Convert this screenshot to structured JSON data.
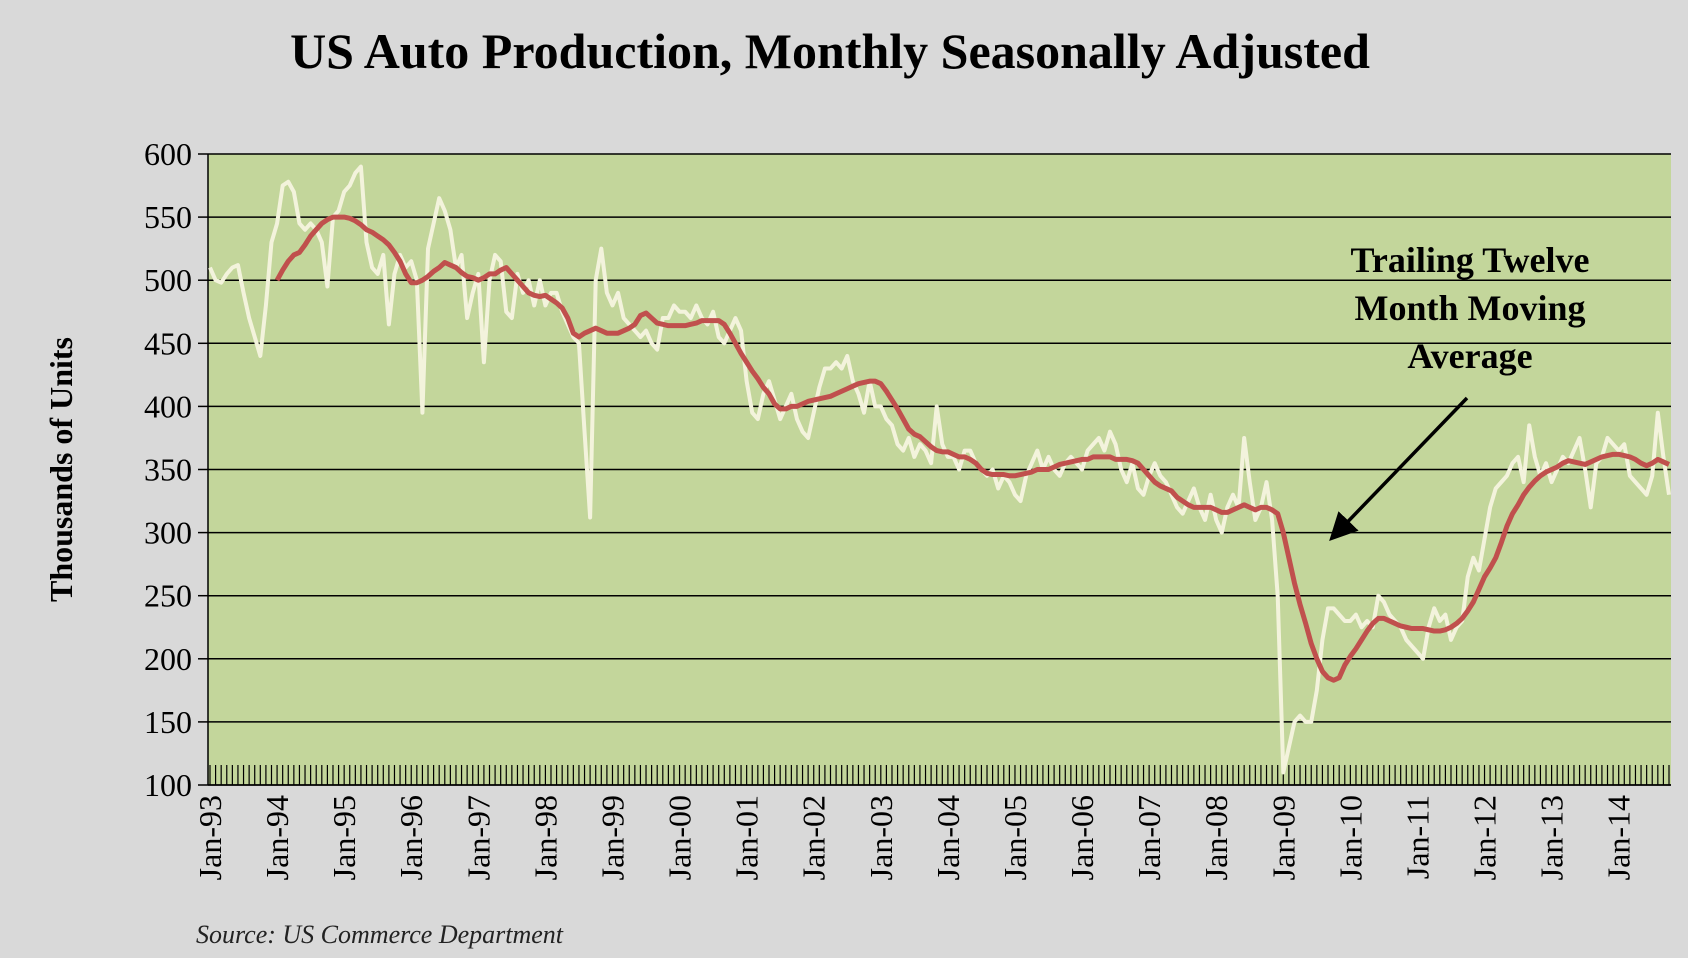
{
  "chart_data": {
    "type": "line",
    "title": "US Auto Production, Monthly Seasonally Adjusted",
    "y_label": "Thousands of Units",
    "source": "Source: US Commerce Department",
    "annotation": "Trailing Twelve Month Moving Average",
    "background": "#c3d69b",
    "grid": true,
    "ylim": [
      100,
      600
    ],
    "yticks": [
      100,
      150,
      200,
      250,
      300,
      350,
      400,
      450,
      500,
      550,
      600
    ],
    "categories": [
      "Jan-93",
      null,
      null,
      null,
      null,
      null,
      null,
      null,
      null,
      null,
      null,
      null,
      "Jan-94",
      null,
      null,
      null,
      null,
      null,
      null,
      null,
      null,
      null,
      null,
      null,
      "Jan-95",
      null,
      null,
      null,
      null,
      null,
      null,
      null,
      null,
      null,
      null,
      null,
      "Jan-96",
      null,
      null,
      null,
      null,
      null,
      null,
      null,
      null,
      null,
      null,
      null,
      "Jan-97",
      null,
      null,
      null,
      null,
      null,
      null,
      null,
      null,
      null,
      null,
      null,
      "Jan-98",
      null,
      null,
      null,
      null,
      null,
      null,
      null,
      null,
      null,
      null,
      null,
      "Jan-99",
      null,
      null,
      null,
      null,
      null,
      null,
      null,
      null,
      null,
      null,
      null,
      "Jan-00",
      null,
      null,
      null,
      null,
      null,
      null,
      null,
      null,
      null,
      null,
      null,
      "Jan-01",
      null,
      null,
      null,
      null,
      null,
      null,
      null,
      null,
      null,
      null,
      null,
      "Jan-02",
      null,
      null,
      null,
      null,
      null,
      null,
      null,
      null,
      null,
      null,
      null,
      "Jan-03",
      null,
      null,
      null,
      null,
      null,
      null,
      null,
      null,
      null,
      null,
      null,
      "Jan-04",
      null,
      null,
      null,
      null,
      null,
      null,
      null,
      null,
      null,
      null,
      null,
      "Jan-05",
      null,
      null,
      null,
      null,
      null,
      null,
      null,
      null,
      null,
      null,
      null,
      "Jan-06",
      null,
      null,
      null,
      null,
      null,
      null,
      null,
      null,
      null,
      null,
      null,
      "Jan-07",
      null,
      null,
      null,
      null,
      null,
      null,
      null,
      null,
      null,
      null,
      null,
      "Jan-08",
      null,
      null,
      null,
      null,
      null,
      null,
      null,
      null,
      null,
      null,
      null,
      "Jan-09",
      null,
      null,
      null,
      null,
      null,
      null,
      null,
      null,
      null,
      null,
      null,
      "Jan-10",
      null,
      null,
      null,
      null,
      null,
      null,
      null,
      null,
      null,
      null,
      null,
      "Jan-11",
      null,
      null,
      null,
      null,
      null,
      null,
      null,
      null,
      null,
      null,
      null,
      "Jan-12",
      null,
      null,
      null,
      null,
      null,
      null,
      null,
      null,
      null,
      null,
      null,
      "Jan-13",
      null,
      null,
      null,
      null,
      null,
      null,
      null,
      null,
      null,
      null,
      null,
      "Jan-14",
      null,
      null,
      null,
      null,
      null,
      null,
      null,
      null,
      null
    ],
    "series": [
      {
        "color": "#f3f3dc",
        "values": [
          510,
          500,
          498,
          505,
          510,
          512,
          490,
          470,
          455,
          440,
          480,
          530,
          545,
          575,
          578,
          570,
          545,
          540,
          545,
          540,
          530,
          495,
          550,
          555,
          570,
          575,
          585,
          590,
          530,
          510,
          505,
          520,
          465,
          505,
          520,
          510,
          515,
          500,
          395,
          525,
          545,
          565,
          555,
          540,
          510,
          520,
          470,
          490,
          505,
          435,
          500,
          520,
          515,
          475,
          470,
          505,
          490,
          500,
          480,
          500,
          480,
          490,
          490,
          475,
          465,
          455,
          450,
          380,
          312,
          500,
          525,
          490,
          480,
          490,
          470,
          465,
          460,
          455,
          460,
          450,
          445,
          470,
          470,
          480,
          475,
          475,
          470,
          480,
          470,
          465,
          475,
          455,
          450,
          460,
          470,
          460,
          420,
          395,
          390,
          410,
          420,
          405,
          390,
          400,
          410,
          390,
          380,
          375,
          395,
          415,
          430,
          430,
          435,
          430,
          440,
          420,
          410,
          395,
          420,
          400,
          400,
          390,
          385,
          370,
          365,
          375,
          360,
          370,
          365,
          355,
          400,
          370,
          360,
          360,
          350,
          365,
          365,
          355,
          350,
          345,
          350,
          335,
          345,
          340,
          330,
          325,
          345,
          355,
          365,
          350,
          360,
          350,
          345,
          355,
          360,
          355,
          350,
          365,
          370,
          375,
          365,
          380,
          370,
          350,
          340,
          355,
          335,
          330,
          345,
          355,
          345,
          340,
          330,
          320,
          315,
          325,
          335,
          320,
          310,
          330,
          310,
          300,
          320,
          330,
          320,
          375,
          340,
          310,
          320,
          340,
          310,
          250,
          110,
          130,
          150,
          155,
          150,
          150,
          175,
          215,
          240,
          240,
          235,
          230,
          230,
          235,
          225,
          230,
          225,
          250,
          245,
          235,
          230,
          225,
          215,
          210,
          205,
          200,
          225,
          240,
          230,
          235,
          215,
          225,
          230,
          265,
          280,
          270,
          295,
          320,
          335,
          340,
          345,
          355,
          360,
          340,
          385,
          360,
          345,
          355,
          340,
          350,
          360,
          355,
          365,
          375,
          350,
          320,
          355,
          360,
          375,
          370,
          365,
          370,
          345,
          340,
          335,
          330,
          345,
          395,
          360,
          330
        ]
      },
      {
        "color": "#c0504d",
        "values": [
          null,
          null,
          null,
          null,
          null,
          null,
          null,
          null,
          null,
          null,
          null,
          null,
          500,
          508,
          515,
          520,
          522,
          528,
          535,
          540,
          545,
          548,
          550,
          550,
          550,
          549,
          547,
          544,
          540,
          538,
          535,
          532,
          528,
          522,
          515,
          505,
          498,
          498,
          500,
          503,
          507,
          510,
          514,
          512,
          510,
          506,
          503,
          502,
          500,
          502,
          505,
          505,
          508,
          510,
          505,
          500,
          495,
          490,
          488,
          487,
          488,
          485,
          482,
          478,
          470,
          458,
          455,
          458,
          460,
          462,
          460,
          458,
          458,
          458,
          460,
          462,
          465,
          472,
          474,
          470,
          466,
          465,
          464,
          464,
          464,
          464,
          465,
          466,
          468,
          468,
          468,
          468,
          465,
          458,
          450,
          442,
          435,
          428,
          422,
          415,
          410,
          402,
          398,
          398,
          400,
          400,
          402,
          404,
          405,
          406,
          407,
          408,
          410,
          412,
          414,
          416,
          418,
          419,
          420,
          420,
          418,
          412,
          405,
          398,
          390,
          382,
          378,
          376,
          372,
          368,
          365,
          364,
          364,
          362,
          360,
          360,
          358,
          355,
          350,
          347,
          346,
          346,
          346,
          345,
          345,
          346,
          347,
          348,
          350,
          350,
          350,
          352,
          354,
          355,
          356,
          357,
          358,
          358,
          360,
          360,
          360,
          360,
          358,
          358,
          358,
          357,
          355,
          350,
          345,
          340,
          337,
          335,
          333,
          328,
          325,
          322,
          320,
          320,
          320,
          320,
          318,
          316,
          316,
          318,
          320,
          322,
          320,
          318,
          320,
          320,
          318,
          315,
          300,
          280,
          260,
          243,
          228,
          212,
          200,
          190,
          185,
          183,
          185,
          195,
          202,
          208,
          215,
          222,
          228,
          232,
          232,
          230,
          228,
          226,
          225,
          224,
          224,
          224,
          223,
          222,
          222,
          223,
          225,
          228,
          232,
          238,
          245,
          255,
          265,
          272,
          280,
          292,
          305,
          315,
          322,
          330,
          336,
          341,
          345,
          348,
          350,
          352,
          355,
          357,
          356,
          355,
          354,
          356,
          358,
          360,
          361,
          362,
          362,
          361,
          360,
          358,
          355,
          353,
          355,
          358,
          356,
          354
        ]
      }
    ]
  }
}
